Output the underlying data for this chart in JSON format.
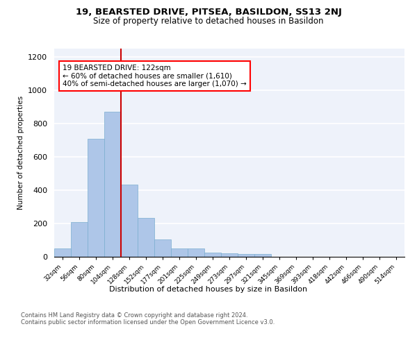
{
  "title1": "19, BEARSTED DRIVE, PITSEA, BASILDON, SS13 2NJ",
  "title2": "Size of property relative to detached houses in Basildon",
  "xlabel": "Distribution of detached houses by size in Basildon",
  "ylabel": "Number of detached properties",
  "bar_labels": [
    "32sqm",
    "56sqm",
    "80sqm",
    "104sqm",
    "128sqm",
    "152sqm",
    "177sqm",
    "201sqm",
    "225sqm",
    "249sqm",
    "273sqm",
    "297sqm",
    "321sqm",
    "345sqm",
    "369sqm",
    "393sqm",
    "418sqm",
    "442sqm",
    "466sqm",
    "490sqm",
    "514sqm"
  ],
  "bar_values": [
    50,
    210,
    710,
    870,
    435,
    235,
    105,
    50,
    50,
    25,
    20,
    15,
    15,
    0,
    0,
    0,
    0,
    0,
    0,
    0,
    0
  ],
  "bar_color": "#aec6e8",
  "bar_edge_color": "#7aaed0",
  "red_line_color": "#cc0000",
  "red_line_bin": 4,
  "annotation_text": "19 BEARSTED DRIVE: 122sqm\n← 60% of detached houses are smaller (1,610)\n40% of semi-detached houses are larger (1,070) →",
  "ylim": [
    0,
    1250
  ],
  "yticks": [
    0,
    200,
    400,
    600,
    800,
    1000,
    1200
  ],
  "footer_text": "Contains HM Land Registry data © Crown copyright and database right 2024.\nContains public sector information licensed under the Open Government Licence v3.0.",
  "background_color": "#eef2fa",
  "grid_color": "white",
  "fig_bg_color": "white"
}
